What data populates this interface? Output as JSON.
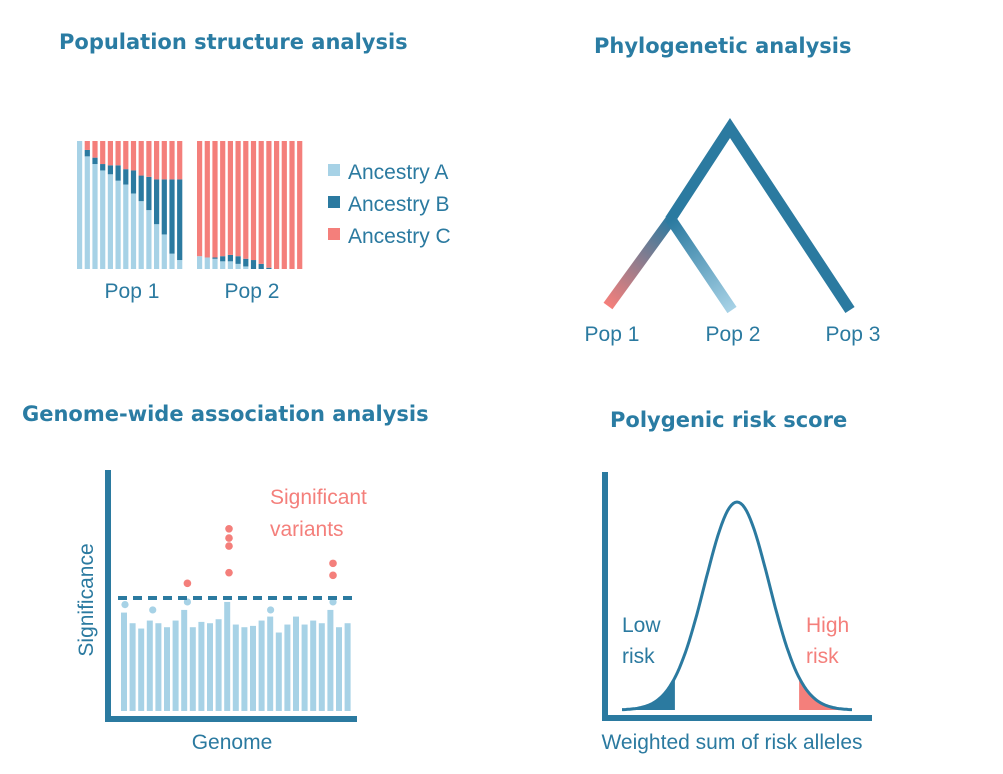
{
  "colors": {
    "ancestry_a": "#a7d2e6",
    "ancestry_b": "#2b7aa0",
    "ancestry_c": "#f47f7b",
    "title": "#2a7ca3",
    "label": "#2b7aa0",
    "highlight": "#f47f7b"
  },
  "panels": {
    "population_structure": {
      "title": "Population structure analysis",
      "legend": [
        "Ancestry A",
        "Ancestry B",
        "Ancestry C"
      ],
      "pop_labels": [
        "Pop 1",
        "Pop 2"
      ]
    },
    "phylogenetic": {
      "title": "Phylogenetic analysis",
      "leaf_labels": [
        "Pop 1",
        "Pop 2",
        "Pop 3"
      ]
    },
    "gwas": {
      "title": "Genome-wide association analysis",
      "ylabel": "Significance",
      "xlabel": "Genome",
      "annotation_line1": "Significant",
      "annotation_line2": "variants"
    },
    "prs": {
      "title": "Polygenic risk score",
      "low_line1": "Low",
      "low_line2": "risk",
      "high_line1": "High",
      "high_line2": "risk",
      "xlabel": "Weighted sum of risk alleles"
    }
  },
  "chart_data": {
    "type": "bar",
    "pop1_ancestry": [
      {
        "a": 1.0,
        "b": 0.0,
        "c": 0.0
      },
      {
        "a": 0.88,
        "b": 0.05,
        "c": 0.07
      },
      {
        "a": 0.82,
        "b": 0.05,
        "c": 0.13
      },
      {
        "a": 0.77,
        "b": 0.05,
        "c": 0.18
      },
      {
        "a": 0.74,
        "b": 0.07,
        "c": 0.19
      },
      {
        "a": 0.69,
        "b": 0.12,
        "c": 0.19
      },
      {
        "a": 0.66,
        "b": 0.12,
        "c": 0.22
      },
      {
        "a": 0.59,
        "b": 0.18,
        "c": 0.23
      },
      {
        "a": 0.53,
        "b": 0.2,
        "c": 0.27
      },
      {
        "a": 0.46,
        "b": 0.26,
        "c": 0.28
      },
      {
        "a": 0.35,
        "b": 0.35,
        "c": 0.3
      },
      {
        "a": 0.27,
        "b": 0.43,
        "c": 0.3
      },
      {
        "a": 0.12,
        "b": 0.58,
        "c": 0.3
      },
      {
        "a": 0.07,
        "b": 0.63,
        "c": 0.3
      }
    ],
    "pop2_ancestry": [
      {
        "a": 0.1,
        "b": 0.0,
        "c": 0.9
      },
      {
        "a": 0.09,
        "b": 0.0,
        "c": 0.91
      },
      {
        "a": 0.08,
        "b": 0.01,
        "c": 0.91
      },
      {
        "a": 0.06,
        "b": 0.04,
        "c": 0.9
      },
      {
        "a": 0.06,
        "b": 0.05,
        "c": 0.89
      },
      {
        "a": 0.04,
        "b": 0.06,
        "c": 0.9
      },
      {
        "a": 0.02,
        "b": 0.06,
        "c": 0.92
      },
      {
        "a": 0.0,
        "b": 0.07,
        "c": 0.93
      },
      {
        "a": 0.0,
        "b": 0.04,
        "c": 0.96
      },
      {
        "a": 0.0,
        "b": 0.01,
        "c": 0.99
      },
      {
        "a": 0.0,
        "b": 0.0,
        "c": 1.0
      },
      {
        "a": 0.0,
        "b": 0.0,
        "c": 1.0
      },
      {
        "a": 0.0,
        "b": 0.0,
        "c": 1.0
      },
      {
        "a": 0.0,
        "b": 0.0,
        "c": 1.0
      }
    ],
    "gwas_bars": [
      0.74,
      0.66,
      0.62,
      0.68,
      0.66,
      0.63,
      0.68,
      0.76,
      0.63,
      0.67,
      0.66,
      0.69,
      0.82,
      0.65,
      0.63,
      0.64,
      0.68,
      0.71,
      0.59,
      0.65,
      0.71,
      0.65,
      0.68,
      0.66,
      0.76,
      0.63,
      0.66
    ],
    "gwas_threshold": 0.89,
    "gwas_subthreshold_points": [
      [
        1,
        0.8
      ],
      [
        5,
        0.76
      ],
      [
        10,
        0.82
      ],
      [
        22,
        0.76
      ],
      [
        31,
        0.82
      ]
    ],
    "gwas_significant_points": [
      [
        10,
        0.96
      ],
      [
        16,
        1.24
      ],
      [
        16,
        1.3
      ],
      [
        16,
        1.37
      ],
      [
        16,
        1.04
      ],
      [
        31,
        1.02
      ],
      [
        31,
        1.11
      ]
    ],
    "prs_distribution": {
      "mean": 0.5,
      "sd": 0.14,
      "low_tail_cutoff": 0.23,
      "high_tail_cutoff": 0.77
    }
  }
}
